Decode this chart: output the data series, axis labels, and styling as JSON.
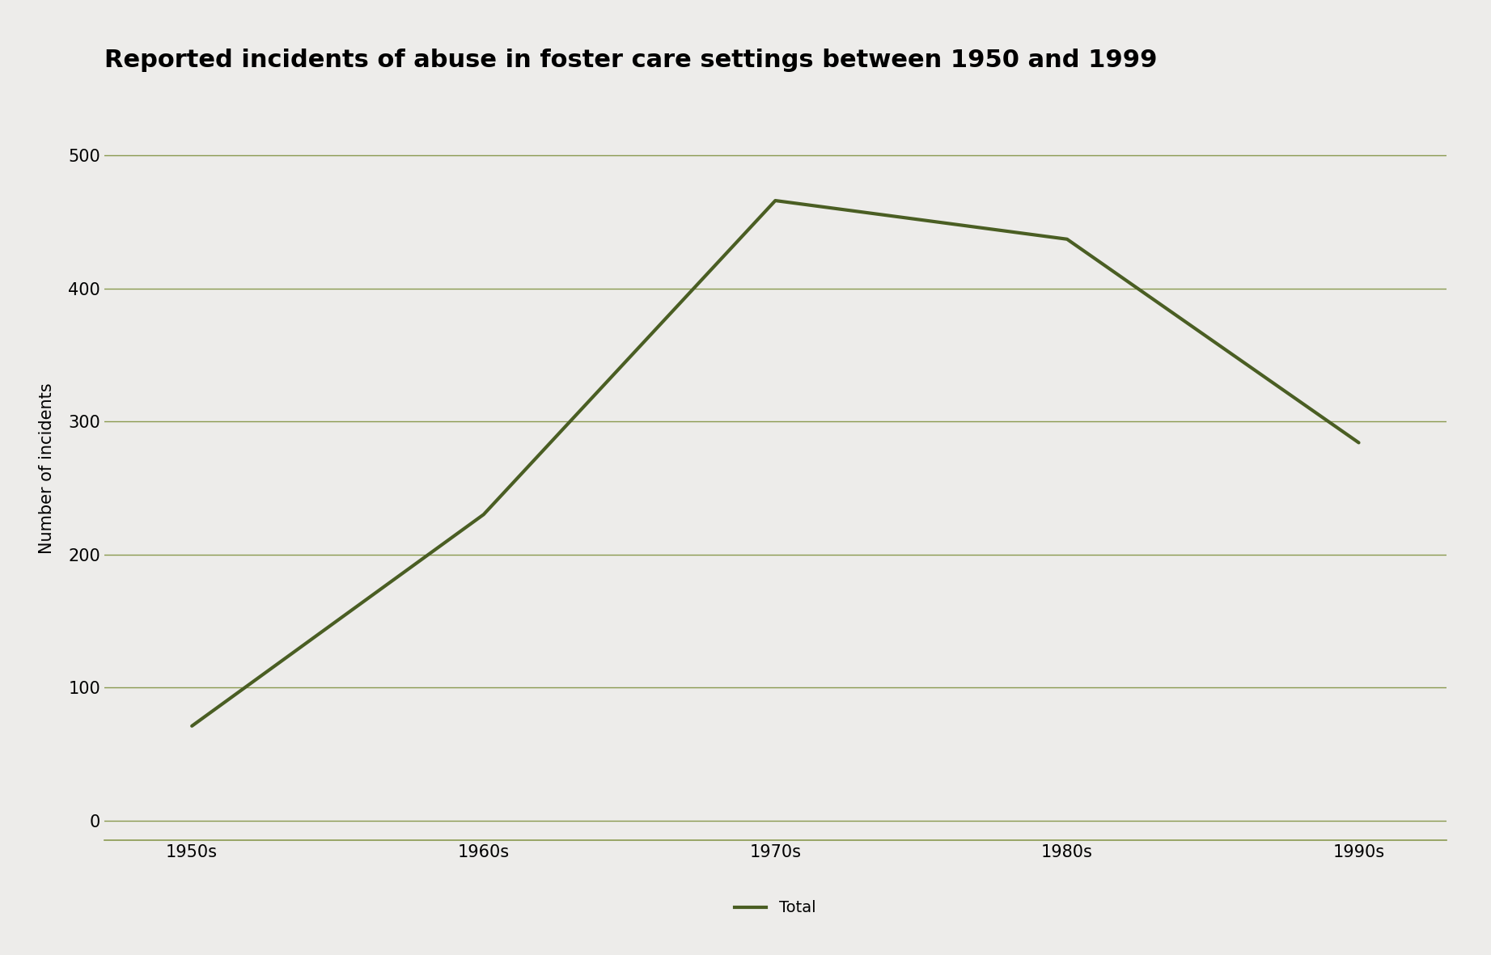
{
  "title": "Reported incidents of abuse in foster care settings between 1950 and 1999",
  "xlabel": "",
  "ylabel": "Number of incidents",
  "categories": [
    "1950s",
    "1960s",
    "1970s",
    "1980s",
    "1990s"
  ],
  "values": [
    71,
    230,
    466,
    437,
    284
  ],
  "line_color": "#4a5e23",
  "line_width": 3.0,
  "background_color": "#edecea",
  "grid_color": "#8a9a50",
  "yticks": [
    0,
    100,
    200,
    300,
    400,
    500
  ],
  "ylim": [
    -15,
    545
  ],
  "legend_label": "Total",
  "title_fontsize": 22,
  "axis_fontsize": 15,
  "tick_fontsize": 15,
  "legend_fontsize": 14
}
